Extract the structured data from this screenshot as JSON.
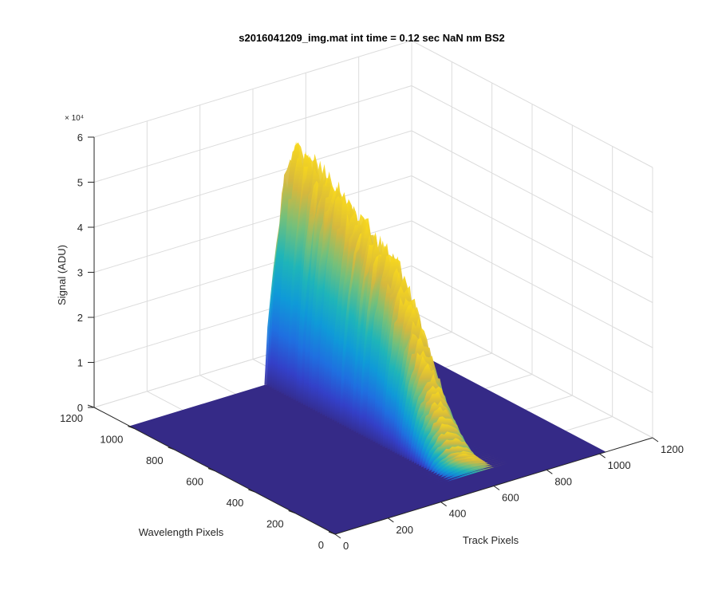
{
  "chart_data": {
    "type": "surface",
    "title": "s2016041209_img.mat int time = 0.12 sec  NaN nm BS2",
    "xlabel": "Track Pixels",
    "ylabel": "Wavelength Pixels",
    "zlabel": "Signal (ADU)",
    "z_exponent_label": "× 10⁴",
    "xlim": [
      0,
      1200
    ],
    "ylim": [
      0,
      1200
    ],
    "zlim": [
      0,
      60000
    ],
    "x_ticks": [
      "0",
      "200",
      "400",
      "600",
      "800",
      "1000",
      "1200"
    ],
    "y_ticks": [
      "0",
      "200",
      "400",
      "600",
      "800",
      "1000",
      "1200"
    ],
    "z_ticks": [
      "0",
      "1",
      "2",
      "3",
      "4",
      "5",
      "6"
    ],
    "grid": true,
    "colormap": "parula",
    "surface_floor_color": "#352a87",
    "signal_band": {
      "track_center": 600,
      "track_halfwidth": 90
    },
    "signal_profile": {
      "wavelength": [
        0,
        100,
        200,
        300,
        400,
        500,
        600,
        700,
        800,
        900,
        1000,
        1100,
        1200
      ],
      "peak_signal": [
        0,
        0,
        3000,
        15000,
        30000,
        40000,
        43000,
        46000,
        50000,
        52000,
        53000,
        3000,
        0
      ]
    }
  }
}
